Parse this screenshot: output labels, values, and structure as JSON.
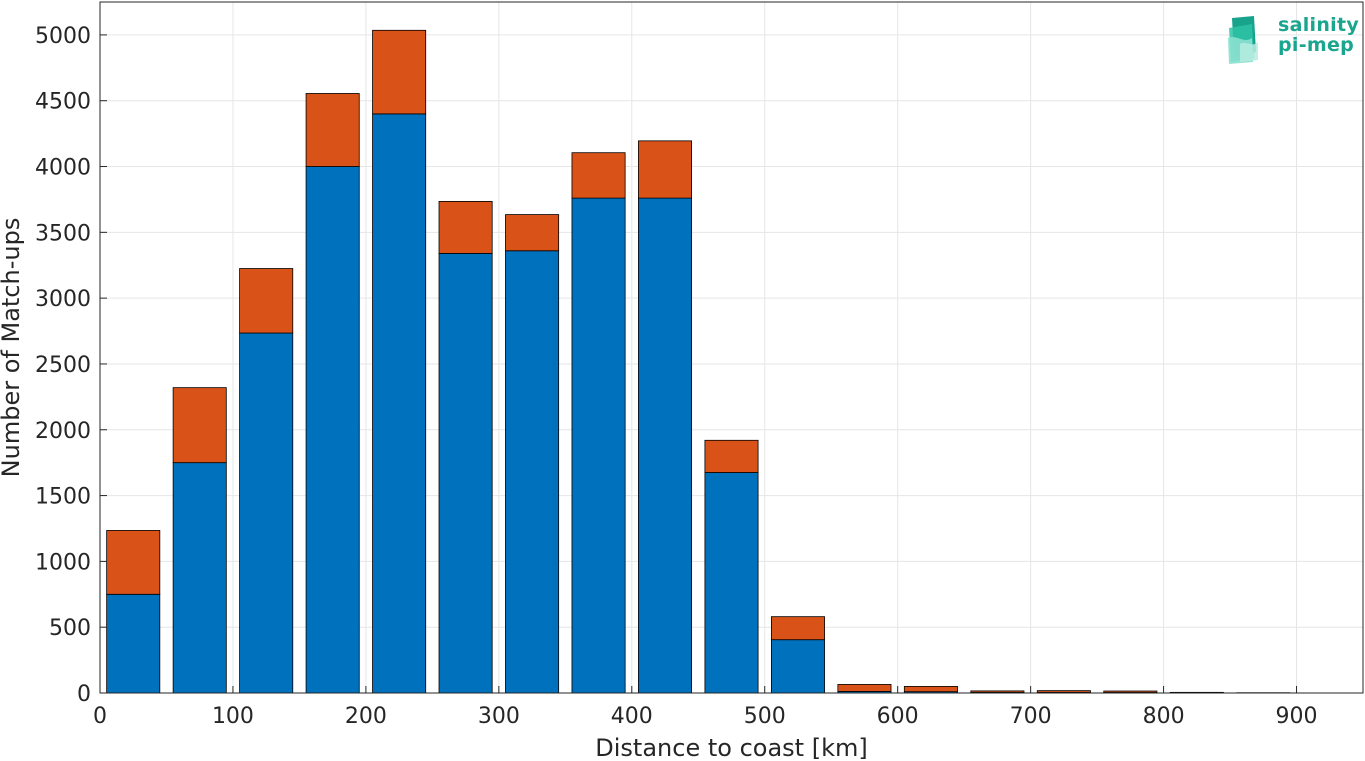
{
  "chart_data": {
    "type": "bar",
    "stacked": true,
    "x": [
      25,
      75,
      125,
      175,
      225,
      275,
      325,
      375,
      425,
      475,
      525,
      575,
      625,
      675,
      725,
      775,
      825,
      875
    ],
    "series": [
      {
        "values": [
          750,
          1750,
          2735,
          4000,
          4400,
          3340,
          3360,
          3760,
          3760,
          1675,
          405,
          12,
          10,
          5,
          5,
          4,
          2,
          1
        ],
        "color": "#0072bd"
      },
      {
        "values": [
          485,
          570,
          490,
          555,
          635,
          395,
          275,
          345,
          435,
          245,
          175,
          53,
          40,
          11,
          13,
          11,
          3,
          1
        ],
        "color": "#d95319"
      }
    ],
    "xlabel": "Distance to coast [km]",
    "ylabel": "Number of Match-ups",
    "xlim": [
      0,
      950
    ],
    "ylim": [
      0,
      5250
    ],
    "xticks": [
      0,
      100,
      200,
      300,
      400,
      500,
      600,
      700,
      800,
      900
    ],
    "yticks": [
      0,
      500,
      1000,
      1500,
      2000,
      2500,
      3000,
      3500,
      4000,
      4500,
      5000
    ],
    "grid": true
  },
  "logo": {
    "line1": "salinity",
    "line2": "pi-mep",
    "color": "#1aa58f"
  }
}
